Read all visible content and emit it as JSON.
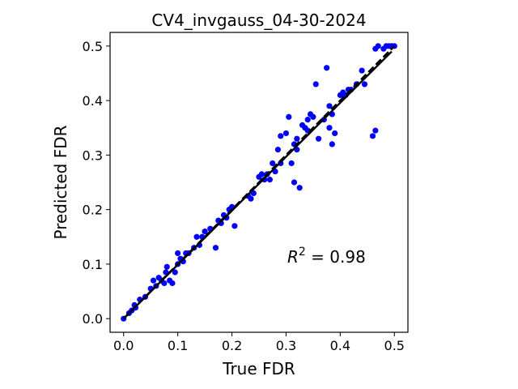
{
  "chart_data": {
    "type": "scatter",
    "title": "CV4_invgauss_04-30-2024",
    "xlabel": "True FDR",
    "ylabel": "Predicted FDR",
    "xlim": [
      -0.025,
      0.525
    ],
    "ylim": [
      -0.025,
      0.525
    ],
    "xticks": [
      0.0,
      0.1,
      0.2,
      0.3,
      0.4,
      0.5
    ],
    "yticks": [
      0.0,
      0.1,
      0.2,
      0.3,
      0.4,
      0.5
    ],
    "xtick_labels": [
      "0.0",
      "0.1",
      "0.2",
      "0.3",
      "0.4",
      "0.5"
    ],
    "ytick_labels": [
      "0.0",
      "0.1",
      "0.2",
      "0.3",
      "0.4",
      "0.5"
    ],
    "grid": false,
    "annotation": {
      "prefix": "R",
      "superscript": "2",
      "text": " = 0.98"
    },
    "point_color": "#0000ff",
    "line_color": "#000000",
    "reference_line": {
      "style": "dashed",
      "x": [
        0.0,
        0.5
      ],
      "y": [
        0.0,
        0.5
      ]
    },
    "fit_line": {
      "style": "solid",
      "x": [
        0.0,
        0.495
      ],
      "y": [
        0.0,
        0.49
      ]
    },
    "points": {
      "x": [
        0.0,
        0.01,
        0.015,
        0.02,
        0.022,
        0.03,
        0.04,
        0.05,
        0.055,
        0.06,
        0.065,
        0.07,
        0.075,
        0.078,
        0.08,
        0.085,
        0.09,
        0.095,
        0.1,
        0.1,
        0.105,
        0.11,
        0.115,
        0.12,
        0.13,
        0.135,
        0.14,
        0.145,
        0.15,
        0.16,
        0.17,
        0.175,
        0.18,
        0.185,
        0.19,
        0.195,
        0.2,
        0.205,
        0.23,
        0.235,
        0.24,
        0.25,
        0.255,
        0.26,
        0.265,
        0.27,
        0.275,
        0.28,
        0.285,
        0.29,
        0.29,
        0.3,
        0.305,
        0.31,
        0.315,
        0.315,
        0.32,
        0.32,
        0.325,
        0.33,
        0.335,
        0.34,
        0.34,
        0.345,
        0.35,
        0.355,
        0.36,
        0.37,
        0.375,
        0.38,
        0.38,
        0.385,
        0.385,
        0.39,
        0.4,
        0.405,
        0.41,
        0.415,
        0.42,
        0.43,
        0.44,
        0.445,
        0.46,
        0.465,
        0.465,
        0.47,
        0.48,
        0.485,
        0.49,
        0.495,
        0.5
      ],
      "y": [
        0.0,
        0.01,
        0.015,
        0.025,
        0.02,
        0.035,
        0.04,
        0.055,
        0.07,
        0.06,
        0.075,
        0.07,
        0.065,
        0.085,
        0.095,
        0.07,
        0.065,
        0.085,
        0.1,
        0.12,
        0.11,
        0.105,
        0.12,
        0.12,
        0.13,
        0.15,
        0.135,
        0.15,
        0.16,
        0.165,
        0.13,
        0.18,
        0.175,
        0.19,
        0.185,
        0.2,
        0.205,
        0.17,
        0.225,
        0.22,
        0.23,
        0.26,
        0.265,
        0.255,
        0.265,
        0.255,
        0.285,
        0.27,
        0.31,
        0.285,
        0.335,
        0.34,
        0.37,
        0.285,
        0.32,
        0.25,
        0.33,
        0.31,
        0.24,
        0.355,
        0.35,
        0.345,
        0.365,
        0.375,
        0.37,
        0.43,
        0.33,
        0.365,
        0.46,
        0.35,
        0.39,
        0.32,
        0.375,
        0.34,
        0.41,
        0.415,
        0.41,
        0.42,
        0.42,
        0.43,
        0.455,
        0.43,
        0.335,
        0.495,
        0.345,
        0.5,
        0.495,
        0.5,
        0.5,
        0.5,
        0.5
      ]
    }
  }
}
